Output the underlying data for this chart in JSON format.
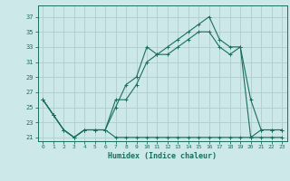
{
  "xlabel": "Humidex (Indice chaleur)",
  "bg_color": "#cce8e8",
  "grid_color": "#b0cccc",
  "line_color": "#1a6e5e",
  "xlim": [
    -0.5,
    23.5
  ],
  "ylim": [
    20.5,
    38.5
  ],
  "xticks": [
    0,
    1,
    2,
    3,
    4,
    5,
    6,
    7,
    8,
    9,
    10,
    11,
    12,
    13,
    14,
    15,
    16,
    17,
    18,
    19,
    20,
    21,
    22,
    23
  ],
  "yticks": [
    21,
    23,
    25,
    27,
    29,
    31,
    33,
    35,
    37
  ],
  "series1_x": [
    0,
    1,
    2,
    3,
    4,
    5,
    6,
    7,
    8,
    9,
    10,
    11,
    12,
    13,
    14,
    15,
    16,
    17,
    18,
    19,
    20,
    21,
    22,
    23
  ],
  "series1_y": [
    26,
    24,
    22,
    21,
    22,
    22,
    22,
    21,
    21,
    21,
    21,
    21,
    21,
    21,
    21,
    21,
    21,
    21,
    21,
    21,
    21,
    21,
    21,
    21
  ],
  "series2_x": [
    0,
    1,
    2,
    3,
    4,
    5,
    6,
    7,
    8,
    9,
    10,
    11,
    12,
    13,
    14,
    15,
    16,
    17,
    18,
    19,
    20,
    21,
    22,
    23
  ],
  "series2_y": [
    26,
    24,
    22,
    21,
    22,
    22,
    22,
    25,
    28,
    29,
    33,
    32,
    33,
    34,
    35,
    36,
    37,
    34,
    33,
    33,
    26,
    22,
    22,
    22
  ],
  "series3_x": [
    0,
    1,
    2,
    3,
    4,
    5,
    6,
    7,
    8,
    9,
    10,
    11,
    12,
    13,
    14,
    15,
    16,
    17,
    18,
    19,
    20,
    21,
    22,
    23
  ],
  "series3_y": [
    26,
    24,
    22,
    21,
    22,
    22,
    22,
    26,
    26,
    28,
    31,
    32,
    32,
    33,
    34,
    35,
    35,
    33,
    32,
    33,
    21,
    22,
    22,
    22
  ]
}
